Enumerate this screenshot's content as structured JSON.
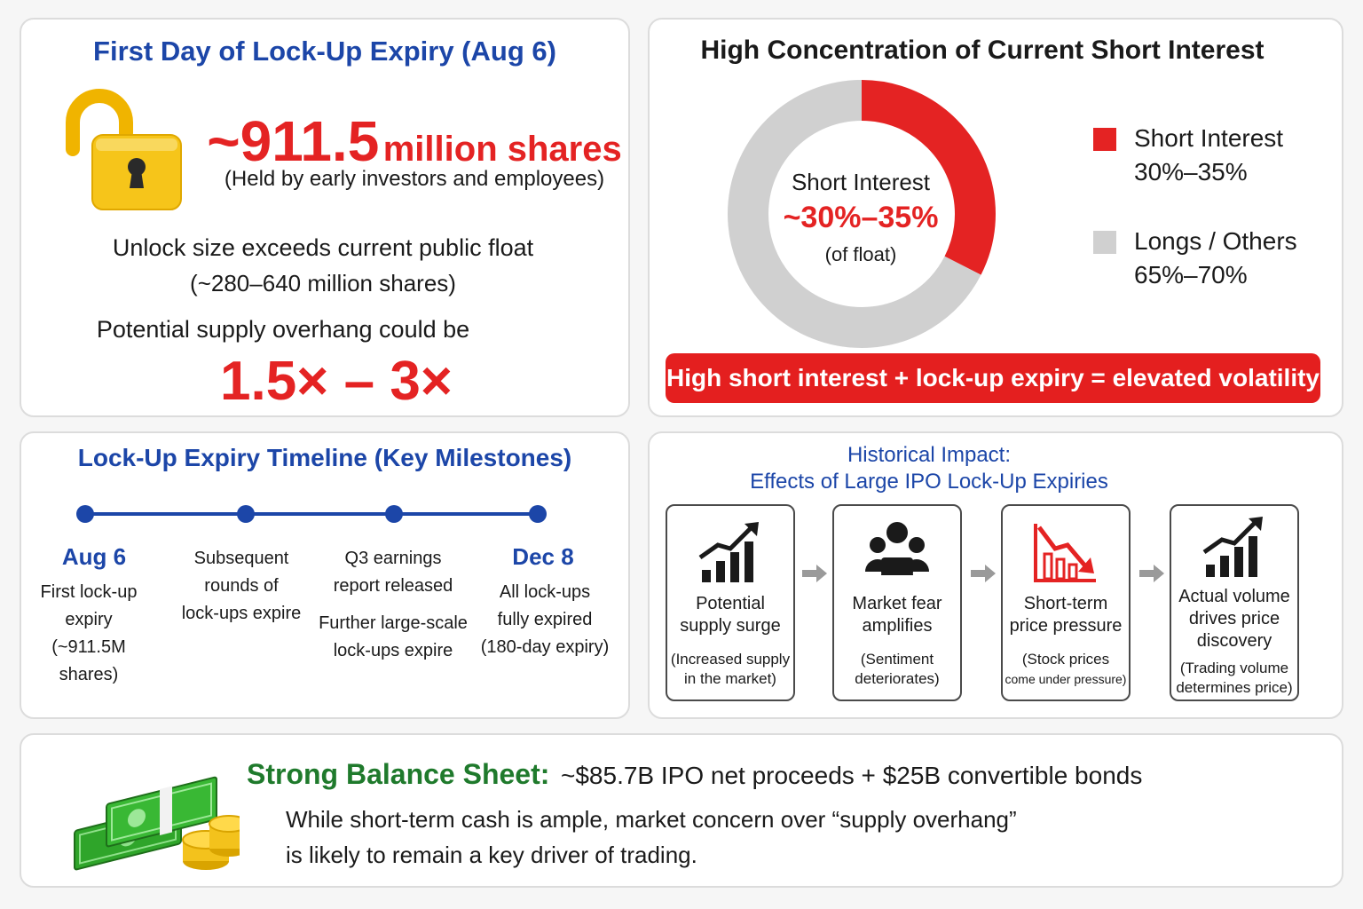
{
  "lockup": {
    "title": "First Day of Lock-Up Expiry (Aug 6)",
    "shares_number": "~911.5",
    "shares_unit": "million shares",
    "held_by": "(Held by early investors and employees)",
    "unlock_line1": "Unlock size exceeds current public float",
    "unlock_line2": "(~280–640 million shares)",
    "overhang_line": "Potential supply overhang could be",
    "multiplier": "1.5× – 3×",
    "icon": "padlock-open-icon",
    "icon_color": "#f5c518"
  },
  "short_interest": {
    "title": "High Concentration of Current Short Interest",
    "center_label": "Short Interest",
    "center_value": "~30%–35%",
    "center_sub": "(of float)",
    "legend": [
      {
        "name": "Short Interest",
        "range": "30%–35%",
        "color": "#e42323"
      },
      {
        "name": "Longs / Others",
        "range": "65%–70%",
        "color": "#d0d0d0"
      }
    ],
    "banner": "High short interest + lock-up expiry = elevated volatility"
  },
  "chart_data": {
    "type": "pie",
    "donut": true,
    "categories": [
      "Short Interest",
      "Longs / Others"
    ],
    "values": [
      32.5,
      67.5
    ],
    "colors": [
      "#e42323",
      "#d0d0d0"
    ]
  },
  "timeline": {
    "title": "Lock-Up Expiry Timeline (Key Milestones)",
    "color": "#1c46a8",
    "milestones": [
      {
        "date": "Aug 6",
        "lines": [
          "First lock-up",
          "expiry",
          "(~911.5M shares)"
        ]
      },
      {
        "date": "",
        "lines": [
          "Subsequent",
          "rounds of",
          "lock-ups expire"
        ]
      },
      {
        "date": "",
        "lines": [
          "Q3 earnings",
          "report released",
          "Further large-scale",
          "lock-ups expire"
        ]
      },
      {
        "date": "Dec 8",
        "lines": [
          "All lock-ups",
          "fully expired",
          "(180-day expiry)"
        ]
      }
    ]
  },
  "historical": {
    "title_line1": "Historical Impact:",
    "title_line2": "Effects of Large IPO Lock-Up Expiries",
    "cards": [
      {
        "icon": "chart-up-icon",
        "title": [
          "Potential",
          "supply surge"
        ],
        "sub": [
          "(Increased supply",
          "in the market)"
        ]
      },
      {
        "icon": "people-group-icon",
        "title": [
          "Market fear",
          "amplifies"
        ],
        "sub": [
          "(Sentiment",
          "deteriorates)"
        ]
      },
      {
        "icon": "chart-down-icon",
        "title": [
          "Short-term",
          "price pressure"
        ],
        "sub": [
          "(Stock prices",
          "come under pressure)"
        ]
      },
      {
        "icon": "chart-up-icon",
        "title": [
          "Actual volume",
          "drives price",
          "discovery"
        ],
        "sub": [
          "(Trading volume",
          "determines price)"
        ]
      }
    ]
  },
  "balance": {
    "title": "Strong Balance Sheet:",
    "subtitle": "~$85.7B IPO net proceeds + $25B convertible bonds",
    "line1": "While short-term cash is ample, market concern over “supply overhang”",
    "line2": "is likely to remain a key driver of trading.",
    "icon": "money-stack-icon",
    "title_color": "#1f7a2c"
  }
}
